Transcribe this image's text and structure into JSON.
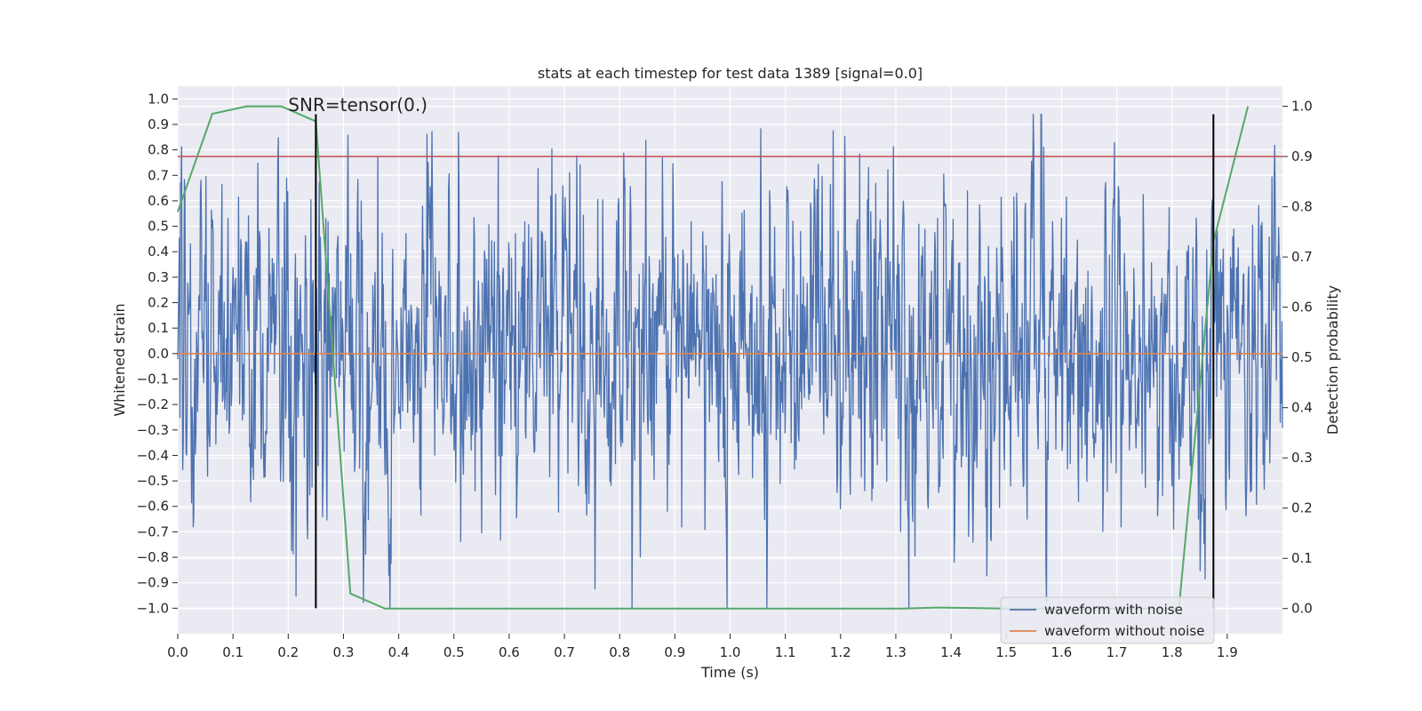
{
  "chart_data": {
    "type": "line",
    "title": "stats at each timestep for test data 1389 [signal=0.0]",
    "xlabel": "Time (s)",
    "ylabel": "Whitened strain",
    "y2label": "Detection probability",
    "xlim": [
      0.0,
      2.0
    ],
    "ylim": [
      -1.1,
      1.05
    ],
    "y2lim": [
      -0.05,
      1.04
    ],
    "x_ticks": [
      "0.0",
      "0.1",
      "0.2",
      "0.3",
      "0.4",
      "0.5",
      "0.6",
      "0.7",
      "0.8",
      "0.9",
      "1.0",
      "1.1",
      "1.2",
      "1.3",
      "1.4",
      "1.5",
      "1.6",
      "1.7",
      "1.8",
      "1.9"
    ],
    "y_ticks": [
      "1.0",
      "0.9",
      "0.8",
      "0.7",
      "0.6",
      "0.5",
      "0.4",
      "0.3",
      "0.2",
      "0.1",
      "0.0",
      "-0.1",
      "-0.2",
      "-0.3",
      "-0.4",
      "-0.5",
      "-0.6",
      "-0.7",
      "-0.8",
      "-0.9",
      "-1.0"
    ],
    "y2_ticks": [
      "1.0",
      "0.9",
      "0.8",
      "0.7",
      "0.6",
      "0.5",
      "0.4",
      "0.3",
      "0.2",
      "0.1",
      "0.0"
    ],
    "annotation": "SNR=tensor(0.)",
    "grid": true,
    "legend_position": "bottom-right",
    "colors": {
      "noisy": "#4c72b0",
      "clean": "#dd8452",
      "probability": "#55a868",
      "threshold": "#c44e52",
      "marker": "#000000",
      "plot_bg": "#eaeaf2",
      "grid": "#ffffff"
    },
    "series": [
      {
        "name": "waveform with noise",
        "axis": "left",
        "style": "dense noise, approx range -1.0 to 0.94",
        "n_samples": 2000,
        "approx_range": [
          -1.0,
          0.94
        ]
      },
      {
        "name": "waveform without noise",
        "axis": "left",
        "x": [
          0.0,
          2.0
        ],
        "y": [
          0.0,
          0.0
        ]
      },
      {
        "name": "detection probability",
        "axis": "right",
        "x": [
          0.0,
          0.0625,
          0.125,
          0.1875,
          0.25,
          0.3125,
          0.375,
          0.4375,
          0.5,
          0.5625,
          0.625,
          0.6875,
          0.75,
          0.8125,
          0.875,
          0.9375,
          1.0,
          1.0625,
          1.125,
          1.1875,
          1.25,
          1.3125,
          1.375,
          1.4375,
          1.5,
          1.5625,
          1.625,
          1.6875,
          1.75,
          1.8125,
          1.875,
          1.9375
        ],
        "y": [
          0.79,
          0.985,
          1.0,
          1.0,
          0.97,
          0.03,
          0.0,
          0.0,
          0.0,
          0.0,
          0.0,
          0.0,
          0.0,
          0.0,
          0.0,
          0.0,
          0.0,
          0.0,
          0.0,
          0.0,
          0.0,
          0.0,
          0.002,
          0.001,
          0.0,
          0.0,
          0.0,
          0.0,
          0.0,
          0.0,
          0.73,
          1.0
        ]
      }
    ],
    "threshold": {
      "axis": "right",
      "value": 0.9
    },
    "vertical_markers": [
      {
        "x": 0.25,
        "y_range": [
          -1.0,
          0.94
        ]
      },
      {
        "x": 1.875,
        "y_range": [
          -1.0,
          0.94
        ]
      }
    ],
    "legend": [
      {
        "label": "waveform with noise",
        "color": "#4c72b0"
      },
      {
        "label": "waveform without noise",
        "color": "#dd8452"
      }
    ]
  }
}
